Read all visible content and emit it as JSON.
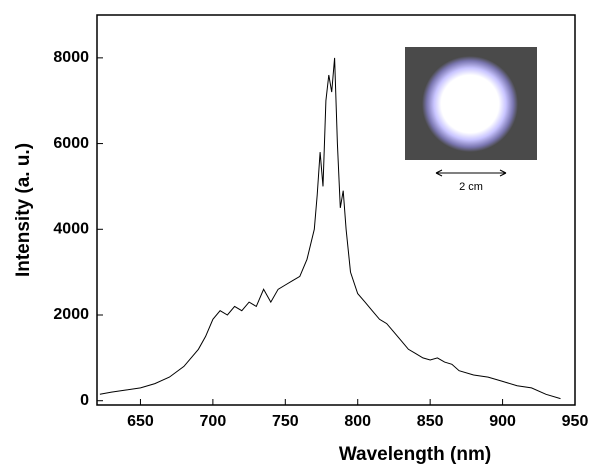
{
  "chart_data": {
    "type": "line",
    "x_label": "Wavelength (nm)",
    "y_label": "Intensity (a. u.)",
    "annotation": "2 cm",
    "xlim": [
      620,
      950
    ],
    "xticks": [
      650,
      700,
      750,
      800,
      850,
      900,
      950
    ],
    "ylim": [
      -100,
      9000
    ],
    "yticks": [
      0,
      2000,
      4000,
      6000,
      8000
    ],
    "series": [
      {
        "color": "#000000",
        "x": [
          622,
          630,
          640,
          650,
          660,
          670,
          680,
          690,
          695,
          700,
          705,
          710,
          715,
          720,
          725,
          730,
          735,
          740,
          745,
          750,
          755,
          760,
          765,
          770,
          772,
          774,
          776,
          778,
          780,
          782,
          784,
          786,
          788,
          790,
          792,
          795,
          800,
          805,
          810,
          815,
          820,
          825,
          830,
          835,
          840,
          845,
          850,
          855,
          860,
          865,
          870,
          880,
          890,
          900,
          910,
          920,
          930,
          940
        ],
        "values": [
          150,
          200,
          250,
          300,
          400,
          550,
          800,
          1200,
          1500,
          1900,
          2100,
          2000,
          2200,
          2100,
          2300,
          2200,
          2600,
          2300,
          2600,
          2700,
          2800,
          2900,
          3300,
          4000,
          4800,
          5800,
          5000,
          7000,
          7600,
          7200,
          8000,
          6000,
          4500,
          4900,
          4000,
          3000,
          2500,
          2300,
          2100,
          1900,
          1800,
          1600,
          1400,
          1200,
          1100,
          1000,
          950,
          1000,
          900,
          850,
          700,
          600,
          550,
          450,
          350,
          300,
          150,
          50
        ]
      }
    ]
  }
}
